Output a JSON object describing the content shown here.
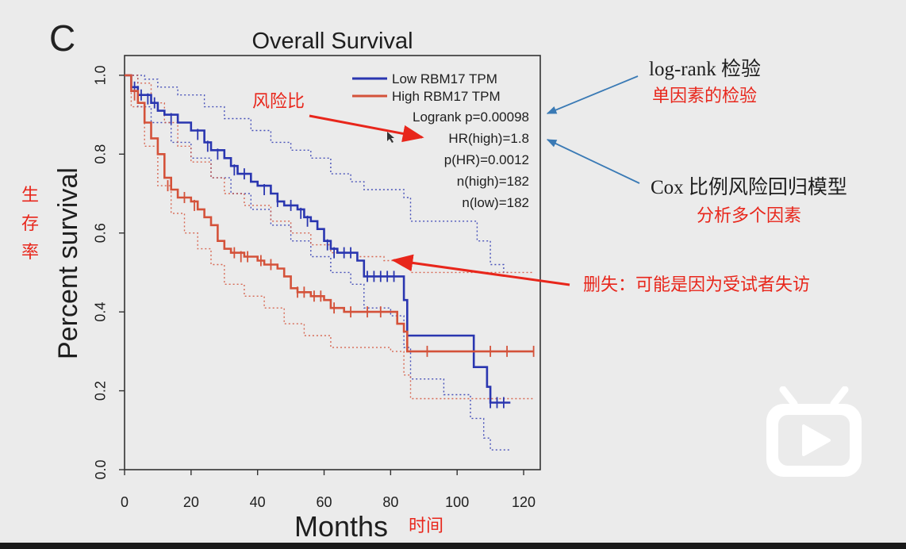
{
  "panel_label": "C",
  "chart_data": {
    "type": "line",
    "title": "Overall Survival",
    "xlabel": "Months",
    "ylabel": "Percent survival",
    "xlim": [
      0,
      125
    ],
    "ylim": [
      0,
      1.05
    ],
    "x_ticks": [
      0,
      20,
      40,
      60,
      80,
      100,
      120
    ],
    "x_tick_labels": [
      "0",
      "20",
      "40",
      "60",
      "80",
      "100",
      "120"
    ],
    "y_ticks": [
      0.0,
      0.2,
      0.4,
      0.6,
      0.8,
      1.0
    ],
    "y_tick_labels": [
      "0.0",
      "0.2",
      "0.4",
      "0.6",
      "0.8",
      "1.0"
    ],
    "grid": false,
    "legend_position": "top-right",
    "series": [
      {
        "name": "Low RBM17 TPM",
        "color": "#2a36b0",
        "points": [
          [
            0,
            1.0
          ],
          [
            2,
            0.97
          ],
          [
            4,
            0.95
          ],
          [
            8,
            0.93
          ],
          [
            10,
            0.91
          ],
          [
            12,
            0.9
          ],
          [
            16,
            0.88
          ],
          [
            20,
            0.86
          ],
          [
            24,
            0.83
          ],
          [
            26,
            0.81
          ],
          [
            30,
            0.79
          ],
          [
            32,
            0.77
          ],
          [
            34,
            0.75
          ],
          [
            38,
            0.73
          ],
          [
            40,
            0.72
          ],
          [
            44,
            0.7
          ],
          [
            46,
            0.68
          ],
          [
            48,
            0.67
          ],
          [
            52,
            0.66
          ],
          [
            54,
            0.64
          ],
          [
            56,
            0.63
          ],
          [
            58,
            0.61
          ],
          [
            60,
            0.58
          ],
          [
            62,
            0.56
          ],
          [
            64,
            0.55
          ],
          [
            70,
            0.53
          ],
          [
            72,
            0.49
          ],
          [
            82,
            0.49
          ],
          [
            84,
            0.43
          ],
          [
            85,
            0.34
          ],
          [
            105,
            0.34
          ],
          [
            105,
            0.26
          ],
          [
            109,
            0.26
          ],
          [
            109,
            0.21
          ],
          [
            110,
            0.17
          ],
          [
            116,
            0.17
          ]
        ],
        "ci_upper": [
          [
            0,
            1.0
          ],
          [
            6,
            0.99
          ],
          [
            10,
            0.97
          ],
          [
            16,
            0.95
          ],
          [
            24,
            0.92
          ],
          [
            30,
            0.89
          ],
          [
            38,
            0.86
          ],
          [
            44,
            0.83
          ],
          [
            50,
            0.81
          ],
          [
            56,
            0.79
          ],
          [
            62,
            0.75
          ],
          [
            68,
            0.73
          ],
          [
            72,
            0.71
          ],
          [
            84,
            0.69
          ],
          [
            86,
            0.63
          ],
          [
            100,
            0.63
          ],
          [
            106,
            0.58
          ],
          [
            110,
            0.52
          ],
          [
            114,
            0.5
          ],
          [
            116,
            0.5
          ]
        ],
        "ci_lower": [
          [
            0,
            1.0
          ],
          [
            4,
            0.92
          ],
          [
            8,
            0.88
          ],
          [
            14,
            0.83
          ],
          [
            20,
            0.79
          ],
          [
            26,
            0.74
          ],
          [
            32,
            0.7
          ],
          [
            38,
            0.66
          ],
          [
            44,
            0.62
          ],
          [
            50,
            0.58
          ],
          [
            56,
            0.54
          ],
          [
            62,
            0.5
          ],
          [
            68,
            0.47
          ],
          [
            72,
            0.41
          ],
          [
            80,
            0.39
          ],
          [
            84,
            0.31
          ],
          [
            86,
            0.23
          ],
          [
            96,
            0.19
          ],
          [
            104,
            0.13
          ],
          [
            108,
            0.08
          ],
          [
            110,
            0.05
          ],
          [
            116,
            0.05
          ]
        ]
      },
      {
        "name": "High RBM17 TPM",
        "color": "#d4523a",
        "points": [
          [
            0,
            1.0
          ],
          [
            2,
            0.96
          ],
          [
            4,
            0.93
          ],
          [
            6,
            0.88
          ],
          [
            8,
            0.84
          ],
          [
            10,
            0.8
          ],
          [
            12,
            0.74
          ],
          [
            14,
            0.71
          ],
          [
            16,
            0.69
          ],
          [
            20,
            0.68
          ],
          [
            22,
            0.66
          ],
          [
            24,
            0.64
          ],
          [
            26,
            0.62
          ],
          [
            28,
            0.58
          ],
          [
            30,
            0.56
          ],
          [
            32,
            0.55
          ],
          [
            36,
            0.54
          ],
          [
            40,
            0.53
          ],
          [
            42,
            0.52
          ],
          [
            46,
            0.51
          ],
          [
            48,
            0.49
          ],
          [
            50,
            0.46
          ],
          [
            52,
            0.45
          ],
          [
            56,
            0.44
          ],
          [
            60,
            0.43
          ],
          [
            62,
            0.41
          ],
          [
            66,
            0.4
          ],
          [
            80,
            0.4
          ],
          [
            82,
            0.37
          ],
          [
            84,
            0.35
          ],
          [
            85,
            0.3
          ],
          [
            123,
            0.3
          ]
        ],
        "ci_upper": [
          [
            0,
            1.0
          ],
          [
            4,
            0.98
          ],
          [
            8,
            0.93
          ],
          [
            12,
            0.88
          ],
          [
            16,
            0.82
          ],
          [
            20,
            0.78
          ],
          [
            26,
            0.74
          ],
          [
            30,
            0.7
          ],
          [
            36,
            0.67
          ],
          [
            44,
            0.63
          ],
          [
            50,
            0.6
          ],
          [
            56,
            0.57
          ],
          [
            62,
            0.55
          ],
          [
            70,
            0.54
          ],
          [
            78,
            0.53
          ],
          [
            84,
            0.52
          ],
          [
            86,
            0.5
          ],
          [
            123,
            0.5
          ]
        ],
        "ci_lower": [
          [
            0,
            1.0
          ],
          [
            2,
            0.92
          ],
          [
            6,
            0.82
          ],
          [
            10,
            0.72
          ],
          [
            14,
            0.65
          ],
          [
            18,
            0.6
          ],
          [
            22,
            0.56
          ],
          [
            26,
            0.52
          ],
          [
            30,
            0.47
          ],
          [
            36,
            0.44
          ],
          [
            42,
            0.41
          ],
          [
            48,
            0.37
          ],
          [
            54,
            0.34
          ],
          [
            62,
            0.31
          ],
          [
            70,
            0.31
          ],
          [
            80,
            0.3
          ],
          [
            84,
            0.24
          ],
          [
            86,
            0.18
          ],
          [
            123,
            0.18
          ]
        ]
      }
    ],
    "censor_marks": {
      "Low RBM17 TPM": [
        [
          3,
          0.97
        ],
        [
          5,
          0.95
        ],
        [
          7,
          0.94
        ],
        [
          9,
          0.93
        ],
        [
          14,
          0.89
        ],
        [
          22,
          0.85
        ],
        [
          25,
          0.82
        ],
        [
          28,
          0.8
        ],
        [
          33,
          0.76
        ],
        [
          36,
          0.75
        ],
        [
          42,
          0.71
        ],
        [
          46,
          0.68
        ],
        [
          50,
          0.67
        ],
        [
          53,
          0.65
        ],
        [
          55,
          0.63
        ],
        [
          61,
          0.57
        ],
        [
          63,
          0.55
        ],
        [
          66,
          0.55
        ],
        [
          68,
          0.55
        ],
        [
          73,
          0.49
        ],
        [
          75,
          0.49
        ],
        [
          77,
          0.49
        ],
        [
          79,
          0.49
        ],
        [
          81,
          0.49
        ],
        [
          110,
          0.17
        ],
        [
          112,
          0.17
        ],
        [
          114,
          0.17
        ]
      ],
      "High RBM17 TPM": [
        [
          3,
          0.95
        ],
        [
          13,
          0.72
        ],
        [
          18,
          0.69
        ],
        [
          21,
          0.67
        ],
        [
          33,
          0.55
        ],
        [
          35,
          0.54
        ],
        [
          37,
          0.54
        ],
        [
          41,
          0.53
        ],
        [
          44,
          0.52
        ],
        [
          52,
          0.45
        ],
        [
          54,
          0.45
        ],
        [
          57,
          0.44
        ],
        [
          59,
          0.44
        ],
        [
          63,
          0.41
        ],
        [
          68,
          0.4
        ],
        [
          73,
          0.4
        ],
        [
          77,
          0.4
        ],
        [
          91,
          0.3
        ],
        [
          110,
          0.3
        ],
        [
          115,
          0.3
        ],
        [
          123,
          0.3
        ]
      ]
    },
    "stats": [
      "Logrank p=0.00098",
      "HR(high)=1.8",
      "p(HR)=0.0012",
      "n(high)=182",
      "n(low)=182"
    ]
  },
  "annotations": {
    "hazard_ratio_note": "风险比",
    "logrank_title": "log-rank 检验",
    "logrank_desc": "单因素的检验",
    "cox_title": "Cox 比例风险回归模型",
    "cox_desc": "分析多个因素",
    "censor_note": "删失：可能是因为受试者失访",
    "y_axis_note": [
      "生",
      "存",
      "率"
    ],
    "x_axis_note": "时间"
  },
  "colors": {
    "low_line": "#2a36b0",
    "high_line": "#d4523a",
    "annotation_red": "#e8261b",
    "annotation_blue_arrow": "#3a7ab5",
    "background": "#ebebeb"
  },
  "icons": [
    "bilibili-tv-play-icon"
  ]
}
